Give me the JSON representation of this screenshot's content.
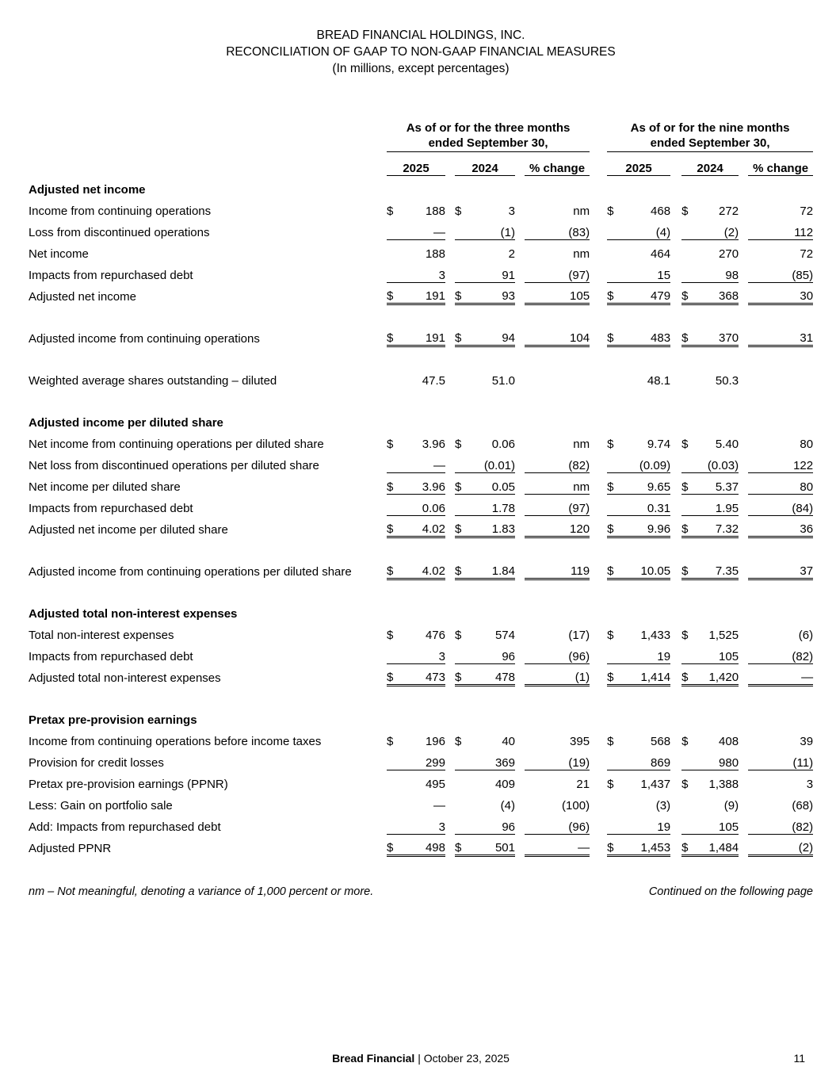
{
  "title": {
    "company": "BREAD FINANCIAL HOLDINGS, INC.",
    "document": "RECONCILIATION OF GAAP TO NON-GAAP FINANCIAL MEASURES",
    "units": "(In millions, except percentages)"
  },
  "table": {
    "col_groups": [
      {
        "line1": "As of or for the three months",
        "line2": "ended September 30,"
      },
      {
        "line1": "As of or for the nine months",
        "line2": "ended September 30,"
      }
    ],
    "col_headers": [
      "2025",
      "2024",
      "% change",
      "2025",
      "2024",
      "% change"
    ],
    "rows": [
      {
        "type": "section",
        "label": "Adjusted net income"
      },
      {
        "type": "data",
        "label": "Income from continuing operations",
        "indent": 1,
        "u": 0,
        "cells": [
          [
            "$",
            "188"
          ],
          [
            "$",
            "3"
          ],
          [
            "",
            "nm"
          ],
          [
            "$",
            "468"
          ],
          [
            "$",
            "272"
          ],
          [
            "",
            "72"
          ]
        ]
      },
      {
        "type": "data",
        "label": "Loss from discontinued operations",
        "indent": 1,
        "u": 1,
        "cells": [
          [
            "",
            "—"
          ],
          [
            "",
            "(1)"
          ],
          [
            "",
            "(83)"
          ],
          [
            "",
            "(4)"
          ],
          [
            "",
            "(2)"
          ],
          [
            "",
            "112"
          ]
        ]
      },
      {
        "type": "data",
        "label": "Net income",
        "indent": 2,
        "u": 0,
        "cells": [
          [
            "",
            "188"
          ],
          [
            "",
            "2"
          ],
          [
            "",
            "nm"
          ],
          [
            "",
            "464"
          ],
          [
            "",
            "270"
          ],
          [
            "",
            "72"
          ]
        ]
      },
      {
        "type": "data",
        "label": "Impacts from repurchased debt",
        "indent": 2,
        "u": 1,
        "cells": [
          [
            "",
            "3"
          ],
          [
            "",
            "91"
          ],
          [
            "",
            "(97)"
          ],
          [
            "",
            "15"
          ],
          [
            "",
            "98"
          ],
          [
            "",
            "(85)"
          ]
        ]
      },
      {
        "type": "data",
        "label": "Adjusted net income",
        "indent": 2,
        "u": 2,
        "cells": [
          [
            "$",
            "191"
          ],
          [
            "$",
            "93"
          ],
          [
            "",
            "105"
          ],
          [
            "$",
            "479"
          ],
          [
            "$",
            "368"
          ],
          [
            "",
            "30"
          ]
        ]
      },
      {
        "type": "spacer"
      },
      {
        "type": "data",
        "label": "Adjusted income from continuing operations",
        "indent": 2,
        "u": 2,
        "cells": [
          [
            "$",
            "191"
          ],
          [
            "$",
            "94"
          ],
          [
            "",
            "104"
          ],
          [
            "$",
            "483"
          ],
          [
            "$",
            "370"
          ],
          [
            "",
            "31"
          ]
        ]
      },
      {
        "type": "spacer"
      },
      {
        "type": "data",
        "label": "Weighted average shares outstanding – diluted",
        "indent": 1,
        "u": 0,
        "cells": [
          [
            "",
            "47.5"
          ],
          [
            "",
            "51.0"
          ],
          [
            "",
            ""
          ],
          [
            "",
            "48.1"
          ],
          [
            "",
            "50.3"
          ],
          [
            "",
            ""
          ]
        ]
      },
      {
        "type": "spacer"
      },
      {
        "type": "section",
        "label": "Adjusted income per diluted share"
      },
      {
        "type": "data",
        "label": "Net income from continuing operations per diluted share",
        "indent": 1,
        "u": 0,
        "cells": [
          [
            "$",
            "3.96"
          ],
          [
            "$",
            "0.06"
          ],
          [
            "",
            "nm"
          ],
          [
            "$",
            "9.74"
          ],
          [
            "$",
            "5.40"
          ],
          [
            "",
            "80"
          ]
        ]
      },
      {
        "type": "data",
        "label": "Net loss from discontinued operations per diluted share",
        "indent": 1,
        "u": 1,
        "cells": [
          [
            "",
            "—"
          ],
          [
            "",
            "(0.01)"
          ],
          [
            "",
            "(82)"
          ],
          [
            "",
            "(0.09)"
          ],
          [
            "",
            "(0.03)"
          ],
          [
            "",
            "122"
          ]
        ]
      },
      {
        "type": "data",
        "label": "Net income per diluted share",
        "indent": 2,
        "u": 1,
        "cells": [
          [
            "$",
            "3.96"
          ],
          [
            "$",
            "0.05"
          ],
          [
            "",
            "nm"
          ],
          [
            "$",
            "9.65"
          ],
          [
            "$",
            "5.37"
          ],
          [
            "",
            "80"
          ]
        ]
      },
      {
        "type": "data",
        "label": "Impacts from repurchased debt",
        "indent": 2,
        "u": 1,
        "cells": [
          [
            "",
            "0.06"
          ],
          [
            "",
            "1.78"
          ],
          [
            "",
            "(97)"
          ],
          [
            "",
            "0.31"
          ],
          [
            "",
            "1.95"
          ],
          [
            "",
            "(84)"
          ]
        ]
      },
      {
        "type": "data",
        "label": "Adjusted net income per diluted share",
        "indent": 2,
        "u": 2,
        "cells": [
          [
            "$",
            "4.02"
          ],
          [
            "$",
            "1.83"
          ],
          [
            "",
            "120"
          ],
          [
            "$",
            "9.96"
          ],
          [
            "$",
            "7.32"
          ],
          [
            "",
            "36"
          ]
        ]
      },
      {
        "type": "spacer"
      },
      {
        "type": "data",
        "label": "Adjusted income from continuing operations per diluted share",
        "indent": 1,
        "u": 2,
        "cells": [
          [
            "$",
            "4.02"
          ],
          [
            "$",
            "1.84"
          ],
          [
            "",
            "119"
          ],
          [
            "$",
            "10.05"
          ],
          [
            "$",
            "7.35"
          ],
          [
            "",
            "37"
          ]
        ]
      },
      {
        "type": "spacer"
      },
      {
        "type": "section",
        "label": "Adjusted total non-interest expenses"
      },
      {
        "type": "data",
        "label": "Total non-interest expenses",
        "indent": 1,
        "u": 0,
        "cells": [
          [
            "$",
            "476"
          ],
          [
            "$",
            "574"
          ],
          [
            "",
            "(17)"
          ],
          [
            "$",
            "1,433"
          ],
          [
            "$",
            "1,525"
          ],
          [
            "",
            "(6)"
          ]
        ]
      },
      {
        "type": "data",
        "label": "Impacts from repurchased debt",
        "indent": 1,
        "u": 1,
        "cells": [
          [
            "",
            "3"
          ],
          [
            "",
            "96"
          ],
          [
            "",
            "(96)"
          ],
          [
            "",
            "19"
          ],
          [
            "",
            "105"
          ],
          [
            "",
            "(82)"
          ]
        ]
      },
      {
        "type": "data",
        "label": "Adjusted total non-interest expenses",
        "indent": 2,
        "u": 2,
        "cells": [
          [
            "$",
            "473"
          ],
          [
            "$",
            "478"
          ],
          [
            "",
            "(1)"
          ],
          [
            "$",
            "1,414"
          ],
          [
            "$",
            "1,420"
          ],
          [
            "",
            "—"
          ]
        ]
      },
      {
        "type": "spacer"
      },
      {
        "type": "section",
        "label": "Pretax pre-provision earnings"
      },
      {
        "type": "data",
        "label": "Income from continuing operations before income taxes",
        "indent": 1,
        "u": 0,
        "cells": [
          [
            "$",
            "196"
          ],
          [
            "$",
            "40"
          ],
          [
            "",
            "395"
          ],
          [
            "$",
            "568"
          ],
          [
            "$",
            "408"
          ],
          [
            "",
            "39"
          ]
        ]
      },
      {
        "type": "data",
        "label": "Provision for credit losses",
        "indent": 1,
        "u": 1,
        "cells": [
          [
            "",
            "299"
          ],
          [
            "",
            "369"
          ],
          [
            "",
            "(19)"
          ],
          [
            "",
            "869"
          ],
          [
            "",
            "980"
          ],
          [
            "",
            "(11)"
          ]
        ]
      },
      {
        "type": "data",
        "label": "Pretax pre-provision earnings (PPNR)",
        "indent": 2,
        "u": 0,
        "cells": [
          [
            "",
            "495"
          ],
          [
            "",
            "409"
          ],
          [
            "",
            "21"
          ],
          [
            "$",
            "1,437"
          ],
          [
            "$",
            "1,388"
          ],
          [
            "",
            "3"
          ]
        ]
      },
      {
        "type": "data",
        "label": "Less: Gain on portfolio sale",
        "indent": 2,
        "u": 0,
        "cells": [
          [
            "",
            "—"
          ],
          [
            "",
            "(4)"
          ],
          [
            "",
            "(100)"
          ],
          [
            "",
            "(3)"
          ],
          [
            "",
            "(9)"
          ],
          [
            "",
            "(68)"
          ]
        ]
      },
      {
        "type": "data",
        "label": "Add: Impacts from repurchased debt",
        "indent": 2,
        "u": 1,
        "cells": [
          [
            "",
            "3"
          ],
          [
            "",
            "96"
          ],
          [
            "",
            "(96)"
          ],
          [
            "",
            "19"
          ],
          [
            "",
            "105"
          ],
          [
            "",
            "(82)"
          ]
        ]
      },
      {
        "type": "data",
        "label": "Adjusted PPNR",
        "indent": 3,
        "u": 2,
        "cells": [
          [
            "$",
            "498"
          ],
          [
            "$",
            "501"
          ],
          [
            "",
            "—"
          ],
          [
            "$",
            "1,453"
          ],
          [
            "$",
            "1,484"
          ],
          [
            "",
            "(2)"
          ]
        ]
      }
    ]
  },
  "footnotes": {
    "left": "nm – Not meaningful, denoting a variance of 1,000 percent or more.",
    "right": "Continued on the following page"
  },
  "footer": {
    "brand": "Bread Financial",
    "separator": "|",
    "date": "October 23, 2025",
    "page_number": "11"
  }
}
